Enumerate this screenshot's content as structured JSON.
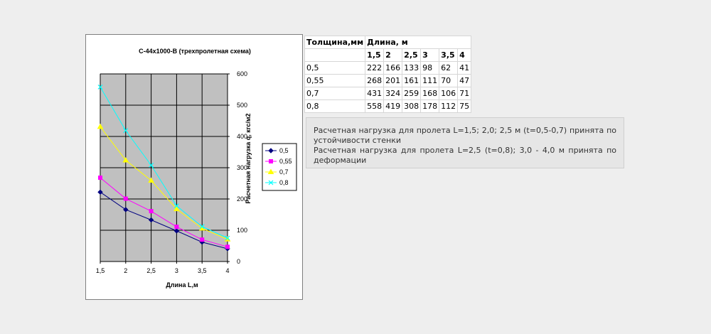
{
  "chart_data": {
    "type": "line",
    "title": "С-44х1000-В (трехпролетная схема)",
    "xlabel": "Длина L,м",
    "ylabel": "Расчетная нагрузка q, кгс/м2",
    "categories": [
      "1,5",
      "2",
      "2,5",
      "3",
      "3,5",
      "4"
    ],
    "x": [
      1.5,
      2,
      2.5,
      3,
      3.5,
      4
    ],
    "yticks": [
      "0",
      "100",
      "200",
      "300",
      "400",
      "500",
      "600"
    ],
    "ylim": [
      0,
      600
    ],
    "grid": true,
    "legend_position": "right",
    "plot_background": "#c0c0c0",
    "series": [
      {
        "name": "0,5",
        "values": [
          222,
          166,
          133,
          98,
          62,
          41
        ],
        "color": "#000080",
        "marker": "diamond"
      },
      {
        "name": "0,55",
        "values": [
          268,
          201,
          161,
          111,
          70,
          47
        ],
        "color": "#ff00ff",
        "marker": "square"
      },
      {
        "name": "0,7",
        "values": [
          431,
          324,
          259,
          168,
          106,
          71
        ],
        "color": "#ffff00",
        "marker": "triangle"
      },
      {
        "name": "0,8",
        "values": [
          558,
          419,
          308,
          178,
          112,
          75
        ],
        "color": "#00ffff",
        "marker": "x"
      }
    ]
  },
  "table": {
    "header1": [
      "Толщина,мм",
      "Длина, м"
    ],
    "header2": [
      "",
      "1,5",
      "2",
      "2,5",
      "3",
      "3,5",
      "4"
    ],
    "rows": [
      [
        "0,5",
        "222",
        "166",
        "133",
        "98",
        "62",
        "41"
      ],
      [
        "0,55",
        "268",
        "201",
        "161",
        "111",
        "70",
        "47"
      ],
      [
        "0,7",
        "431",
        "324",
        "259",
        "168",
        "106",
        "71"
      ],
      [
        "0,8",
        "558",
        "419",
        "308",
        "178",
        "112",
        "75"
      ]
    ]
  },
  "note": {
    "line1": "Расчетная нагрузка для пролета L=1,5; 2,0; 2,5 м (t=0,5-0,7) принята по устойчивости стенки",
    "line2": "Расчетная нагрузка для пролета L=2,5 (t=0,8); 3,0 - 4,0 м принята по деформации"
  }
}
